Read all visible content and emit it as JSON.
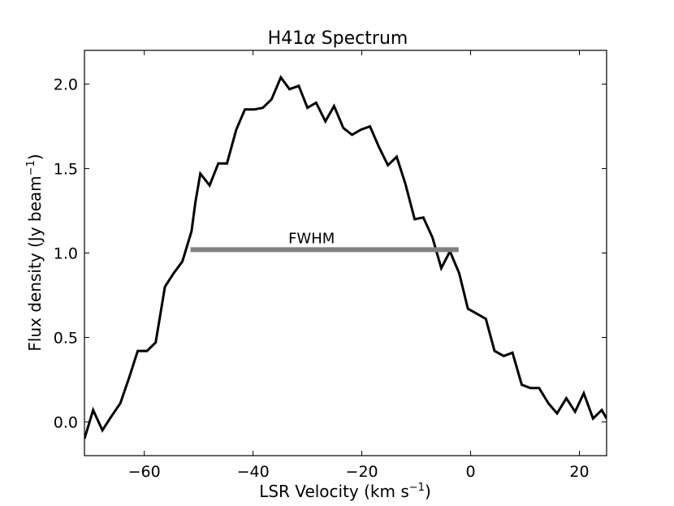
{
  "chart_data": {
    "type": "line",
    "title": {
      "prefix": "H41",
      "greek": "α",
      "suffix": " Spectrum"
    },
    "xlabel": {
      "main": "LSR Velocity (km s",
      "sup": "−1",
      "close": ")"
    },
    "ylabel": {
      "main": "Flux density (Jy beam",
      "sup": "−1",
      "close": ")"
    },
    "xlim": [
      -71,
      25
    ],
    "ylim": [
      -0.2,
      2.2
    ],
    "xticks": [
      -60,
      -40,
      -20,
      0,
      20
    ],
    "xtick_labels": [
      "−60",
      "−40",
      "−20",
      "0",
      "20"
    ],
    "yticks": [
      0.0,
      0.5,
      1.0,
      1.5,
      2.0
    ],
    "ytick_labels": [
      "0.0",
      "0.5",
      "1.0",
      "1.5",
      "2.0"
    ],
    "grid": false,
    "series": [
      {
        "color": "#000000",
        "x": [
          -71,
          -69.4,
          -67.7,
          -66.1,
          -64.4,
          -62.8,
          -61.2,
          -59.5,
          -57.9,
          -56.2,
          -54.6,
          -53.0,
          -51.3,
          -50.6,
          -49.7,
          -48.0,
          -46.4,
          -44.8,
          -43.1,
          -41.5,
          -39.8,
          -38.2,
          -36.6,
          -34.9,
          -33.3,
          -31.6,
          -30.0,
          -28.4,
          -26.7,
          -25.1,
          -23.4,
          -21.8,
          -20.2,
          -18.5,
          -16.9,
          -15.2,
          -13.6,
          -12.0,
          -10.3,
          -8.7,
          -7.0,
          -5.4,
          -3.8,
          -2.1,
          -0.5,
          1.2,
          2.8,
          4.4,
          6.1,
          7.7,
          9.4,
          11.0,
          12.6,
          14.3,
          15.9,
          17.6,
          19.2,
          20.8,
          22.5,
          24.1,
          25.0
        ],
        "y": [
          -0.1,
          0.07,
          -0.05,
          0.03,
          0.11,
          0.26,
          0.42,
          0.42,
          0.47,
          0.8,
          0.88,
          0.95,
          1.13,
          1.3,
          1.47,
          1.4,
          1.53,
          1.53,
          1.73,
          1.85,
          1.85,
          1.86,
          1.91,
          2.04,
          1.97,
          1.99,
          1.86,
          1.89,
          1.78,
          1.87,
          1.74,
          1.7,
          1.73,
          1.75,
          1.63,
          1.52,
          1.57,
          1.41,
          1.2,
          1.21,
          1.09,
          0.91,
          1.01,
          0.88,
          0.67,
          0.64,
          0.61,
          0.42,
          0.39,
          0.41,
          0.22,
          0.2,
          0.2,
          0.11,
          0.05,
          0.14,
          0.06,
          0.17,
          0.02,
          0.07,
          0.02
        ]
      }
    ],
    "annotations": [
      {
        "text": "FWHM",
        "x_start": -51.5,
        "x_end": -2.2,
        "y": 1.02,
        "color": "#808080"
      }
    ]
  }
}
